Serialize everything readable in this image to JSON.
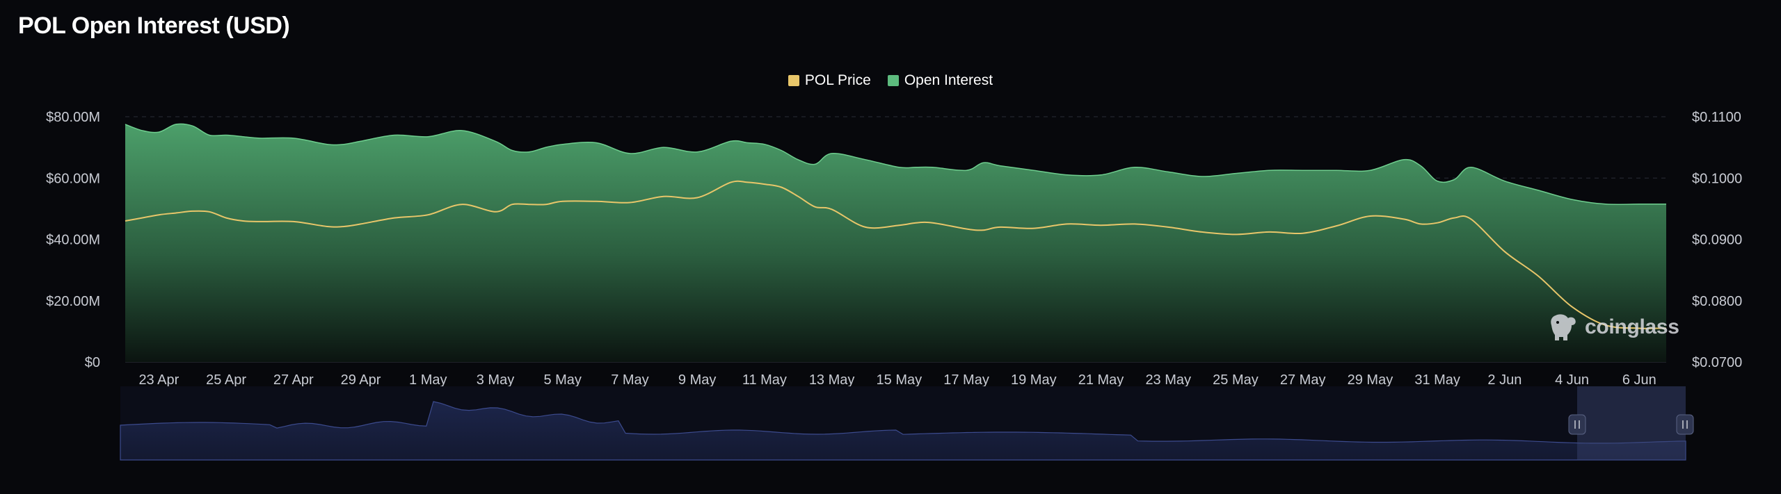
{
  "title": "POL Open Interest (USD)",
  "legend": [
    {
      "label": "POL Price",
      "color": "#e8c66a"
    },
    {
      "label": "Open Interest",
      "color": "#5dbb7e"
    }
  ],
  "watermark": "coinglass",
  "chart_data": {
    "type": "area",
    "title": "POL Open Interest (USD)",
    "left_axis": {
      "ticks": [
        "$0",
        "$20.00M",
        "$40.00M",
        "$60.00M",
        "$80.00M"
      ],
      "values": [
        0,
        20,
        40,
        60,
        80
      ],
      "ylim": [
        0,
        80
      ],
      "unit": "USD millions"
    },
    "right_axis": {
      "ticks": [
        "$0.0700",
        "$0.0800",
        "$0.0900",
        "$0.1000",
        "$0.1100"
      ],
      "values": [
        0.07,
        0.08,
        0.09,
        0.1,
        0.11
      ],
      "ylim": [
        0.07,
        0.11
      ]
    },
    "x_labels": [
      "23 Apr",
      "25 Apr",
      "27 Apr",
      "29 Apr",
      "1 May",
      "3 May",
      "5 May",
      "7 May",
      "9 May",
      "11 May",
      "13 May",
      "15 May",
      "17 May",
      "19 May",
      "21 May",
      "23 May",
      "25 May",
      "27 May",
      "29 May",
      "31 May",
      "2 Jun",
      "4 Jun",
      "6 Jun"
    ],
    "x": [
      -1,
      -0.5,
      0,
      0.5,
      1,
      1.5,
      2,
      2.5,
      3,
      4,
      5,
      5.5,
      6,
      7,
      8,
      9,
      10,
      10.5,
      11,
      11.5,
      12,
      13,
      14,
      15,
      16,
      17,
      17.5,
      18,
      18.5,
      19,
      19.5,
      20,
      21,
      22,
      22.5,
      23,
      24,
      24.5,
      25,
      26,
      27,
      28,
      29,
      30,
      31,
      32,
      33,
      34,
      35,
      36,
      37,
      37.5,
      38,
      38.5,
      39,
      40,
      41,
      42,
      43,
      44,
      44.5,
      44.8
    ],
    "series": [
      {
        "name": "Open Interest",
        "axis": "left",
        "color": "#5dbb7e",
        "values": [
          77.5,
          75.5,
          75,
          77.5,
          77,
          74,
          74,
          73.5,
          73,
          73,
          71,
          71,
          72,
          74,
          73.5,
          75.5,
          72,
          69,
          68.5,
          70,
          71,
          71.5,
          68,
          70,
          68.5,
          72,
          71.5,
          71,
          69,
          66,
          64.5,
          68,
          66,
          63.5,
          63.5,
          63.5,
          62.5,
          65,
          64,
          62.5,
          61,
          61,
          63.5,
          62,
          60.5,
          61.5,
          62.5,
          62.5,
          62.5,
          62.5,
          66,
          64,
          59,
          59.5,
          63.5,
          59,
          56,
          53,
          51.5,
          51.5,
          51.5,
          51.5
        ]
      },
      {
        "name": "POL Price",
        "axis": "right",
        "color": "#e8c66a",
        "values": [
          0.093,
          0.0935,
          0.094,
          0.0943,
          0.0946,
          0.0945,
          0.0935,
          0.093,
          0.0929,
          0.0929,
          0.0921,
          0.0921,
          0.0925,
          0.0935,
          0.094,
          0.0957,
          0.0945,
          0.0957,
          0.0957,
          0.0957,
          0.0962,
          0.0962,
          0.096,
          0.097,
          0.0968,
          0.0993,
          0.0993,
          0.099,
          0.0985,
          0.097,
          0.0953,
          0.0949,
          0.092,
          0.0923,
          0.0927,
          0.0927,
          0.0917,
          0.0915,
          0.092,
          0.0918,
          0.0925,
          0.0923,
          0.0925,
          0.092,
          0.0912,
          0.0908,
          0.0912,
          0.091,
          0.0922,
          0.0938,
          0.0933,
          0.0925,
          0.0927,
          0.0935,
          0.0933,
          0.088,
          0.084,
          0.079,
          0.076,
          0.0755,
          0.0755,
          0.0755
        ]
      }
    ],
    "grid": true,
    "legend_position": "top-center",
    "navigator": {
      "visible": true,
      "description": "range selector below chart with brush handles"
    }
  }
}
